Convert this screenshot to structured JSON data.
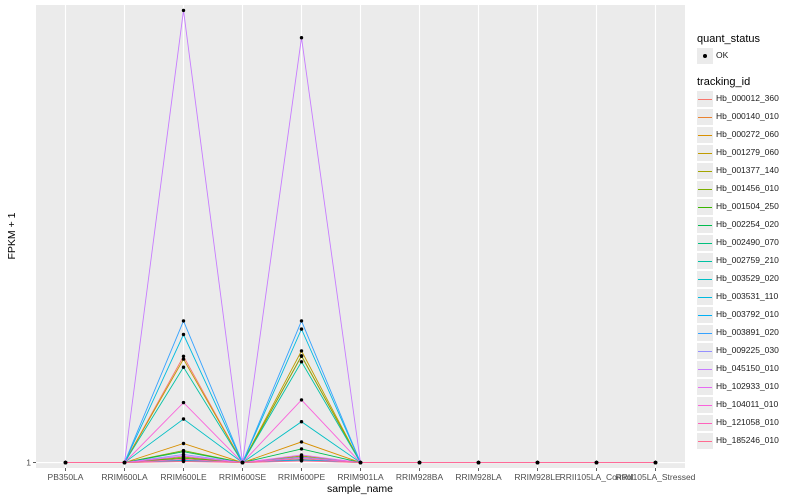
{
  "chart_data": {
    "type": "line",
    "xlabel": "sample_name",
    "ylabel": "FPKM + 1",
    "categories": [
      "PB350LA",
      "RRIM600LA",
      "RRIM600LE",
      "RRIM600SE",
      "RRIM600PE",
      "RRIM901LA",
      "RRIM928BA",
      "RRIM928LA",
      "RRIM928LE",
      "RRII105LA_Control",
      "RRII105LA_Stressed"
    ],
    "y_ticks": [
      "1"
    ],
    "ylim": [
      0.9,
      9.4
    ],
    "grid": true,
    "legend_position": "right",
    "point_color": "#000000",
    "quant_status": {
      "title": "quant_status",
      "items": [
        "OK"
      ]
    },
    "tracking_title": "tracking_id",
    "series": [
      {
        "name": "Hb_000012_360",
        "color": "#F8766D",
        "values": [
          1,
          1,
          2.95,
          1,
          2.95,
          1,
          1,
          1,
          1,
          1,
          1
        ]
      },
      {
        "name": "Hb_000140_010",
        "color": "#EA8331",
        "values": [
          1,
          1,
          1.05,
          1,
          1.06,
          1,
          1,
          1,
          1,
          1,
          1
        ]
      },
      {
        "name": "Hb_000272_060",
        "color": "#D89000",
        "values": [
          1,
          1,
          1.35,
          1,
          1.38,
          1,
          1,
          1,
          1,
          1,
          1
        ]
      },
      {
        "name": "Hb_001279_060",
        "color": "#C09B00",
        "values": [
          1,
          1,
          2.9,
          1,
          3.05,
          1,
          1,
          1,
          1,
          1,
          1
        ]
      },
      {
        "name": "Hb_001377_140",
        "color": "#A3A500",
        "values": [
          1,
          1,
          1.1,
          1,
          1.12,
          1,
          1,
          1,
          1,
          1,
          1
        ]
      },
      {
        "name": "Hb_001456_010",
        "color": "#7CAE00",
        "values": [
          1,
          1,
          1.22,
          1,
          2.96,
          1,
          1,
          1,
          1,
          1,
          1
        ]
      },
      {
        "name": "Hb_001504_250",
        "color": "#39B600",
        "values": [
          1,
          1,
          1.08,
          1,
          1.1,
          1,
          1,
          1,
          1,
          1,
          1
        ]
      },
      {
        "name": "Hb_002254_020",
        "color": "#00BB4E",
        "values": [
          1,
          1,
          1.2,
          1,
          1.25,
          1,
          1,
          1,
          1,
          1,
          1
        ]
      },
      {
        "name": "Hb_002490_070",
        "color": "#00BF7D",
        "values": [
          1,
          1,
          1.03,
          1,
          1.04,
          1,
          1,
          1,
          1,
          1,
          1
        ]
      },
      {
        "name": "Hb_002759_210",
        "color": "#00C1A3",
        "values": [
          1,
          1,
          2.75,
          1,
          2.85,
          1,
          1,
          1,
          1,
          1,
          1
        ]
      },
      {
        "name": "Hb_003529_020",
        "color": "#00BFC4",
        "values": [
          1,
          1,
          1.8,
          1,
          1.75,
          1,
          1,
          1,
          1,
          1,
          1
        ]
      },
      {
        "name": "Hb_003531_110",
        "color": "#00BAE0",
        "values": [
          1,
          1,
          3.35,
          1,
          3.45,
          1,
          1,
          1,
          1,
          1,
          1
        ]
      },
      {
        "name": "Hb_003792_010",
        "color": "#00B0F6",
        "values": [
          1,
          1,
          1.04,
          1,
          1.05,
          1,
          1,
          1,
          1,
          1,
          1
        ]
      },
      {
        "name": "Hb_003891_020",
        "color": "#35A2FF",
        "values": [
          1,
          1,
          3.6,
          1,
          3.6,
          1,
          1,
          1,
          1,
          1,
          1
        ]
      },
      {
        "name": "Hb_009225_030",
        "color": "#9590FF",
        "values": [
          1,
          1,
          1.15,
          1,
          1.1,
          1,
          1,
          1,
          1,
          1,
          1
        ]
      },
      {
        "name": "Hb_045150_010",
        "color": "#C77CFF",
        "values": [
          1,
          1,
          9.3,
          1,
          8.8,
          1,
          1,
          1,
          1,
          1,
          1
        ]
      },
      {
        "name": "Hb_102933_010",
        "color": "#E76BF3",
        "values": [
          1,
          1,
          1.12,
          1,
          1.14,
          1,
          1,
          1,
          1,
          1,
          1
        ]
      },
      {
        "name": "Hb_104011_010",
        "color": "#FA62DB",
        "values": [
          1,
          1,
          2.1,
          1,
          2.15,
          1,
          1,
          1,
          1,
          1,
          1
        ]
      },
      {
        "name": "Hb_121058_010",
        "color": "#FF62BC",
        "values": [
          1,
          1,
          1.06,
          1,
          1.08,
          1,
          1,
          1,
          1,
          1,
          1
        ]
      },
      {
        "name": "Hb_185246_010",
        "color": "#FF6C91",
        "values": [
          1,
          1,
          1.02,
          1,
          1.03,
          1,
          1,
          1,
          1,
          1,
          1
        ]
      }
    ]
  }
}
